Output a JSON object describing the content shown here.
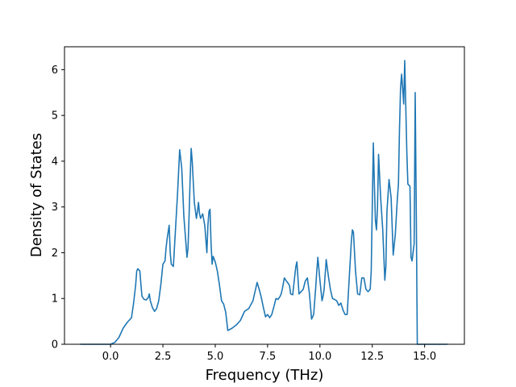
{
  "chart_data": {
    "type": "line",
    "title": "",
    "xlabel": "Frequency (THz)",
    "ylabel": "Density of States",
    "xlim": [
      -2.2,
      16.9
    ],
    "ylim": [
      0,
      6.5
    ],
    "xticks": [
      0.0,
      2.5,
      5.0,
      7.5,
      10.0,
      12.5,
      15.0
    ],
    "xtick_labels": [
      "0.0",
      "2.5",
      "5.0",
      "7.5",
      "10.0",
      "12.5",
      "15.0"
    ],
    "yticks": [
      0,
      1,
      2,
      3,
      4,
      5,
      6
    ],
    "ytick_labels": [
      "0",
      "1",
      "2",
      "3",
      "4",
      "5",
      "6"
    ],
    "grid": false,
    "series": [
      {
        "color": "#1f77b4",
        "x": [
          -1.45,
          -0.5,
          0.0,
          0.2,
          0.4,
          0.6,
          0.8,
          1.0,
          1.1,
          1.2,
          1.25,
          1.3,
          1.4,
          1.45,
          1.5,
          1.6,
          1.7,
          1.8,
          1.85,
          1.9,
          2.0,
          2.1,
          2.2,
          2.3,
          2.4,
          2.5,
          2.6,
          2.65,
          2.7,
          2.8,
          2.85,
          2.9,
          3.0,
          3.1,
          3.2,
          3.3,
          3.4,
          3.5,
          3.6,
          3.65,
          3.7,
          3.75,
          3.8,
          3.85,
          3.9,
          4.0,
          4.1,
          4.15,
          4.2,
          4.25,
          4.3,
          4.4,
          4.5,
          4.55,
          4.6,
          4.65,
          4.7,
          4.75,
          4.8,
          4.85,
          4.9,
          5.0,
          5.1,
          5.2,
          5.3,
          5.4,
          5.5,
          5.6,
          5.8,
          6.0,
          6.2,
          6.4,
          6.6,
          6.8,
          7.0,
          7.1,
          7.2,
          7.3,
          7.4,
          7.5,
          7.6,
          7.7,
          7.8,
          7.9,
          8.0,
          8.1,
          8.15,
          8.2,
          8.3,
          8.4,
          8.5,
          8.55,
          8.6,
          8.7,
          8.8,
          8.85,
          8.9,
          9.0,
          9.1,
          9.2,
          9.3,
          9.4,
          9.5,
          9.6,
          9.7,
          9.8,
          9.85,
          9.9,
          10.0,
          10.1,
          10.15,
          10.2,
          10.3,
          10.4,
          10.5,
          10.6,
          10.7,
          10.8,
          10.9,
          11.0,
          11.1,
          11.2,
          11.3,
          11.4,
          11.5,
          11.55,
          11.6,
          11.7,
          11.8,
          11.9,
          12.0,
          12.1,
          12.2,
          12.3,
          12.4,
          12.45,
          12.5,
          12.55,
          12.6,
          12.65,
          12.7,
          12.75,
          12.8,
          12.9,
          13.0,
          13.1,
          13.15,
          13.2,
          13.3,
          13.4,
          13.5,
          13.6,
          13.7,
          13.75,
          13.8,
          13.85,
          13.9,
          13.95,
          14.0,
          14.05,
          14.1,
          14.15,
          14.2,
          14.3,
          14.35,
          14.4,
          14.5,
          14.55,
          14.6,
          14.65,
          14.7,
          15.0,
          15.5,
          16.1
        ],
        "y": [
          0.0,
          0.0,
          0.0,
          0.04,
          0.15,
          0.35,
          0.48,
          0.58,
          0.9,
          1.3,
          1.6,
          1.65,
          1.6,
          1.3,
          1.05,
          0.98,
          0.97,
          1.02,
          1.1,
          0.95,
          0.8,
          0.72,
          0.78,
          0.95,
          1.3,
          1.75,
          1.82,
          2.1,
          2.3,
          2.6,
          2.0,
          1.75,
          1.7,
          2.5,
          3.3,
          4.25,
          3.85,
          2.8,
          2.2,
          1.9,
          2.1,
          2.8,
          3.6,
          4.28,
          4.0,
          3.1,
          2.75,
          2.9,
          3.1,
          2.85,
          2.75,
          2.85,
          2.6,
          2.3,
          2.0,
          2.6,
          2.9,
          2.95,
          2.2,
          1.75,
          1.92,
          1.8,
          1.6,
          1.3,
          0.95,
          0.88,
          0.7,
          0.3,
          0.35,
          0.42,
          0.52,
          0.72,
          0.78,
          0.95,
          1.35,
          1.2,
          1.02,
          0.8,
          0.6,
          0.65,
          0.58,
          0.65,
          0.82,
          1.0,
          0.98,
          1.05,
          1.1,
          1.2,
          1.45,
          1.38,
          1.32,
          1.28,
          1.1,
          1.08,
          1.5,
          1.7,
          1.8,
          1.1,
          1.15,
          1.2,
          1.38,
          1.45,
          1.1,
          0.55,
          0.65,
          1.25,
          1.6,
          1.9,
          1.4,
          0.95,
          1.05,
          1.2,
          1.85,
          1.5,
          1.2,
          1.0,
          0.98,
          0.95,
          0.85,
          0.9,
          0.75,
          0.65,
          0.65,
          1.45,
          2.25,
          2.5,
          2.45,
          1.6,
          1.1,
          1.08,
          1.45,
          1.45,
          1.2,
          1.15,
          1.2,
          1.6,
          3.0,
          4.4,
          3.5,
          2.7,
          2.5,
          3.0,
          4.15,
          3.2,
          2.5,
          1.4,
          1.7,
          2.9,
          3.6,
          3.2,
          1.95,
          2.4,
          3.2,
          3.5,
          4.7,
          5.6,
          5.9,
          5.6,
          5.25,
          6.2,
          5.2,
          4.2,
          3.5,
          3.45,
          1.9,
          1.82,
          2.2,
          5.5,
          3.0,
          0.0,
          0.0,
          0.0,
          0.0,
          0.0
        ]
      }
    ]
  }
}
